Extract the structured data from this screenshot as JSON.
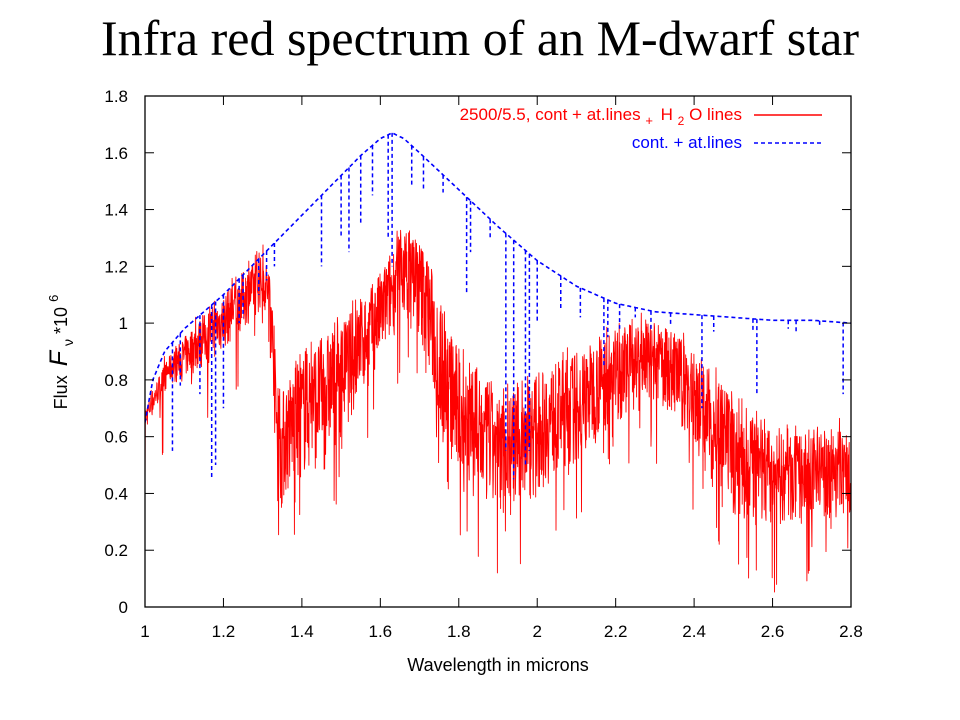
{
  "title": "Infra red spectrum of an M-dwarf star",
  "chart_data": {
    "type": "line",
    "title": "Infra red spectrum of an M-dwarf star",
    "xlabel": "Wavelength in microns",
    "ylabel": {
      "prefix": "Flux",
      "symbol": "F",
      "subscript": "ν",
      "suffix": "*10",
      "exponent": "6"
    },
    "xlim": [
      1,
      2.8
    ],
    "ylim": [
      0,
      1.8
    ],
    "xticks": [
      "1",
      "1.2",
      "1.4",
      "1.6",
      "1.8",
      "2",
      "2.2",
      "2.4",
      "2.6",
      "2.8"
    ],
    "yticks": [
      "0",
      "0.2",
      "0.4",
      "0.6",
      "0.8",
      "1",
      "1.2",
      "1.4",
      "1.6",
      "1.8"
    ],
    "grid": false,
    "legend_position": "top-right",
    "series": [
      {
        "name": "2500/5.5, cont + at.lines + H2O lines",
        "legend": {
          "main": "2500/5.5, cont + at.lines",
          "plus": "+",
          "h": "H",
          "sub": "2",
          "tail": "O lines"
        },
        "color": "#ff0000",
        "style": "solid",
        "envelope": {
          "x": [
            1.0,
            1.03,
            1.06,
            1.1,
            1.15,
            1.2,
            1.25,
            1.3,
            1.32,
            1.34,
            1.36,
            1.4,
            1.45,
            1.5,
            1.55,
            1.6,
            1.65,
            1.68,
            1.72,
            1.76,
            1.8,
            1.85,
            1.9,
            1.95,
            2.0,
            2.05,
            2.1,
            2.15,
            2.2,
            2.25,
            2.3,
            2.35,
            2.4,
            2.45,
            2.5,
            2.55,
            2.6,
            2.65,
            2.7,
            2.75,
            2.8
          ],
          "upper": [
            0.7,
            0.8,
            0.88,
            0.95,
            1.03,
            1.1,
            1.18,
            1.24,
            1.18,
            0.72,
            0.8,
            0.88,
            0.95,
            1.0,
            1.08,
            1.18,
            1.32,
            1.34,
            1.25,
            1.05,
            0.9,
            0.8,
            0.74,
            0.76,
            0.82,
            0.86,
            0.9,
            0.94,
            0.98,
            1.0,
            1.0,
            0.97,
            0.9,
            0.82,
            0.72,
            0.66,
            0.62,
            0.6,
            0.61,
            0.63,
            0.62
          ],
          "lower": [
            0.62,
            0.7,
            0.78,
            0.8,
            0.84,
            0.9,
            0.98,
            1.05,
            1.0,
            0.3,
            0.38,
            0.45,
            0.5,
            0.6,
            0.72,
            0.85,
            1.0,
            1.02,
            0.85,
            0.55,
            0.42,
            0.35,
            0.32,
            0.35,
            0.4,
            0.45,
            0.5,
            0.58,
            0.65,
            0.7,
            0.72,
            0.66,
            0.55,
            0.42,
            0.32,
            0.28,
            0.27,
            0.28,
            0.3,
            0.32,
            0.3
          ]
        }
      },
      {
        "name": "cont. + at.lines",
        "color": "#0000ff",
        "style": "dashed",
        "continuum": {
          "x": [
            1.0,
            1.02,
            1.05,
            1.1,
            1.2,
            1.3,
            1.4,
            1.5,
            1.55,
            1.6,
            1.63,
            1.66,
            1.7,
            1.8,
            1.9,
            2.0,
            2.1,
            2.2,
            2.3,
            2.4,
            2.5,
            2.6,
            2.7,
            2.8
          ],
          "y": [
            0.65,
            0.8,
            0.9,
            0.98,
            1.1,
            1.24,
            1.38,
            1.52,
            1.59,
            1.65,
            1.67,
            1.65,
            1.6,
            1.47,
            1.34,
            1.22,
            1.13,
            1.07,
            1.04,
            1.03,
            1.02,
            1.01,
            1.01,
            1.0
          ]
        },
        "absorption_lines": [
          {
            "x": 1.07,
            "y": 0.55
          },
          {
            "x": 1.09,
            "y": 0.78
          },
          {
            "x": 1.14,
            "y": 0.75
          },
          {
            "x": 1.17,
            "y": 0.45
          },
          {
            "x": 1.18,
            "y": 0.5
          },
          {
            "x": 1.2,
            "y": 0.7
          },
          {
            "x": 1.24,
            "y": 1.0
          },
          {
            "x": 1.25,
            "y": 1.02
          },
          {
            "x": 1.29,
            "y": 1.1
          },
          {
            "x": 1.31,
            "y": 1.15
          },
          {
            "x": 1.33,
            "y": 1.2
          },
          {
            "x": 1.45,
            "y": 1.2
          },
          {
            "x": 1.5,
            "y": 1.3
          },
          {
            "x": 1.52,
            "y": 1.25
          },
          {
            "x": 1.55,
            "y": 1.35
          },
          {
            "x": 1.58,
            "y": 1.45
          },
          {
            "x": 1.62,
            "y": 1.3
          },
          {
            "x": 1.63,
            "y": 1.2
          },
          {
            "x": 1.68,
            "y": 1.48
          },
          {
            "x": 1.71,
            "y": 1.47
          },
          {
            "x": 1.76,
            "y": 1.46
          },
          {
            "x": 1.82,
            "y": 1.1
          },
          {
            "x": 1.83,
            "y": 1.25
          },
          {
            "x": 1.88,
            "y": 1.3
          },
          {
            "x": 1.92,
            "y": 0.55
          },
          {
            "x": 1.94,
            "y": 0.45
          },
          {
            "x": 1.97,
            "y": 0.5
          },
          {
            "x": 1.98,
            "y": 0.55
          },
          {
            "x": 2.0,
            "y": 1.0
          },
          {
            "x": 2.06,
            "y": 1.05
          },
          {
            "x": 2.11,
            "y": 1.02
          },
          {
            "x": 2.17,
            "y": 0.85
          },
          {
            "x": 2.18,
            "y": 0.95
          },
          {
            "x": 2.21,
            "y": 0.98
          },
          {
            "x": 2.25,
            "y": 1.02
          },
          {
            "x": 2.29,
            "y": 0.97
          },
          {
            "x": 2.34,
            "y": 0.99
          },
          {
            "x": 2.42,
            "y": 0.7
          },
          {
            "x": 2.45,
            "y": 0.97
          },
          {
            "x": 2.55,
            "y": 0.97
          },
          {
            "x": 2.56,
            "y": 0.75
          },
          {
            "x": 2.64,
            "y": 0.98
          },
          {
            "x": 2.66,
            "y": 0.97
          },
          {
            "x": 2.72,
            "y": 0.99
          },
          {
            "x": 2.78,
            "y": 0.75
          }
        ]
      }
    ]
  }
}
